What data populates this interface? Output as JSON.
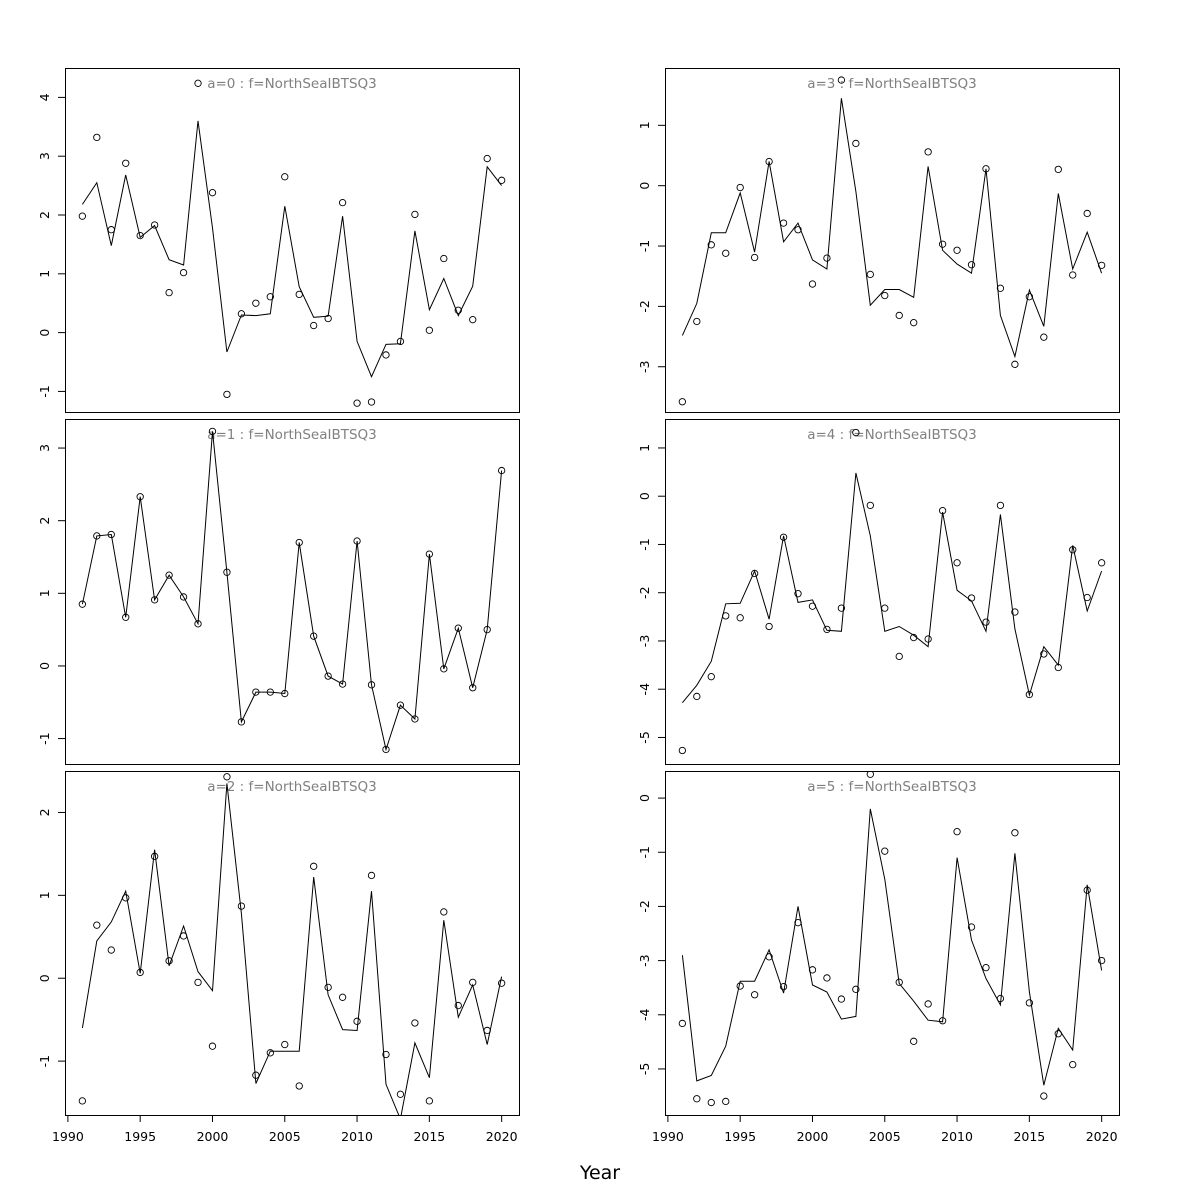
{
  "chart_data": {
    "type": "line",
    "xlabel": "Year",
    "x_ticks": [
      1990,
      1995,
      2000,
      2005,
      2010,
      2015,
      2020
    ],
    "xlim": [
      1989.8,
      2021.2
    ],
    "years": [
      1991,
      1992,
      1993,
      1994,
      1995,
      1996,
      1997,
      1998,
      1999,
      2000,
      2001,
      2002,
      2003,
      2004,
      2005,
      2006,
      2007,
      2008,
      2009,
      2010,
      2011,
      2012,
      2013,
      2014,
      2015,
      2016,
      2017,
      2018,
      2019,
      2020
    ],
    "legend": "none",
    "grid": false,
    "style": {
      "line_color": "#000000",
      "point_color": "#000000",
      "title_color": "#808080"
    },
    "panels": [
      {
        "title": "a=0  :  f=NorthSeaIBTSQ3",
        "y_ticks": [
          -1,
          0,
          1,
          2,
          3,
          4
        ],
        "ylim": [
          -1.35,
          4.5
        ],
        "observed": [
          1.98,
          3.32,
          1.75,
          2.88,
          1.65,
          1.83,
          0.68,
          1.02,
          4.24,
          2.38,
          -1.05,
          0.32,
          0.5,
          0.61,
          2.65,
          0.65,
          0.12,
          0.24,
          2.21,
          -1.2,
          -1.18,
          -0.38,
          -0.15,
          2.01,
          0.04,
          1.26,
          0.38,
          0.22,
          2.96,
          2.59
        ],
        "fitted": [
          2.18,
          2.55,
          1.48,
          2.68,
          1.62,
          1.82,
          1.24,
          1.15,
          3.6,
          1.78,
          -0.33,
          0.3,
          0.29,
          0.32,
          2.15,
          0.78,
          0.26,
          0.28,
          1.98,
          -0.15,
          -0.75,
          -0.2,
          -0.19,
          1.73,
          0.39,
          0.92,
          0.29,
          0.79,
          2.82,
          2.5
        ]
      },
      {
        "title": "a=1  :  f=NorthSeaIBTSQ3",
        "y_ticks": [
          -1,
          0,
          1,
          2,
          3
        ],
        "ylim": [
          -1.35,
          3.4
        ],
        "observed": [
          0.85,
          1.79,
          1.81,
          0.67,
          2.33,
          0.91,
          1.25,
          0.95,
          0.58,
          3.23,
          1.29,
          -0.77,
          -0.36,
          -0.36,
          -0.38,
          1.7,
          0.41,
          -0.14,
          -0.25,
          1.72,
          -0.26,
          -1.15,
          -0.54,
          -0.73,
          1.54,
          -0.04,
          0.52,
          -0.3,
          0.5,
          2.69
        ],
        "fitted": [
          0.85,
          1.79,
          1.81,
          0.67,
          2.33,
          0.91,
          1.25,
          0.95,
          0.58,
          3.23,
          1.29,
          -0.77,
          -0.36,
          -0.36,
          -0.38,
          1.7,
          0.41,
          -0.14,
          -0.25,
          1.72,
          -0.26,
          -1.15,
          -0.54,
          -0.73,
          1.54,
          -0.04,
          0.52,
          -0.3,
          0.5,
          2.69
        ]
      },
      {
        "title": "a=2  :  f=NorthSeaIBTSQ3",
        "y_ticks": [
          -1,
          0,
          1,
          2
        ],
        "ylim": [
          -1.65,
          2.5
        ],
        "observed": [
          -1.48,
          0.64,
          0.34,
          0.97,
          0.07,
          1.47,
          0.21,
          0.51,
          -0.05,
          -0.82,
          2.43,
          0.87,
          -1.17,
          -0.9,
          -0.8,
          -1.3,
          1.35,
          -0.11,
          -0.23,
          -0.52,
          1.24,
          -0.92,
          -1.4,
          -0.54,
          -1.48,
          0.8,
          -0.33,
          -0.05,
          -0.63,
          -0.06
        ],
        "fitted": [
          -0.6,
          0.45,
          0.68,
          1.05,
          0.06,
          1.55,
          0.15,
          0.63,
          0.08,
          -0.15,
          2.35,
          0.78,
          -1.27,
          -0.88,
          -0.88,
          -0.88,
          1.22,
          -0.2,
          -0.62,
          -0.63,
          1.05,
          -1.28,
          -1.7,
          -0.78,
          -1.2,
          0.7,
          -0.47,
          -0.08,
          -0.8,
          0.02
        ]
      },
      {
        "title": "a=3  :  f=NorthSeaIBTSQ3",
        "y_ticks": [
          -3,
          -2,
          -1,
          0,
          1
        ],
        "ylim": [
          -3.75,
          1.95
        ],
        "observed": [
          -3.58,
          -2.25,
          -0.98,
          -1.12,
          -0.03,
          -1.19,
          0.4,
          -0.62,
          -0.73,
          -1.63,
          -1.2,
          1.75,
          0.7,
          -1.47,
          -1.82,
          -2.15,
          -2.27,
          0.56,
          -0.97,
          -1.07,
          -1.31,
          0.28,
          -1.7,
          -2.96,
          -1.84,
          -2.51,
          0.27,
          -1.48,
          -0.46,
          -1.32
        ],
        "fitted": [
          -2.48,
          -1.95,
          -0.78,
          -0.78,
          -0.12,
          -1.1,
          0.4,
          -0.93,
          -0.62,
          -1.23,
          -1.38,
          1.45,
          -0.1,
          -1.98,
          -1.72,
          -1.72,
          -1.85,
          0.32,
          -1.07,
          -1.3,
          -1.45,
          0.28,
          -2.15,
          -2.83,
          -1.73,
          -2.33,
          -0.13,
          -1.38,
          -0.77,
          -1.45
        ]
      },
      {
        "title": "a=4  :  f=NorthSeaIBTSQ3",
        "y_ticks": [
          -5,
          -4,
          -3,
          -2,
          -1,
          0,
          1
        ],
        "ylim": [
          -5.55,
          1.6
        ],
        "observed": [
          -5.27,
          -4.15,
          -3.74,
          -2.48,
          -2.52,
          -1.6,
          -2.7,
          -0.85,
          -2.02,
          -2.28,
          -2.76,
          -2.32,
          1.32,
          -0.19,
          -2.32,
          -3.32,
          -2.93,
          -2.96,
          -0.3,
          -1.38,
          -2.11,
          -2.61,
          -0.19,
          -2.4,
          -4.11,
          -3.27,
          -3.55,
          -1.11,
          -2.1,
          -1.38
        ],
        "fitted": [
          -4.28,
          -3.92,
          -3.42,
          -2.23,
          -2.22,
          -1.55,
          -2.55,
          -0.82,
          -2.2,
          -2.15,
          -2.78,
          -2.8,
          0.48,
          -0.82,
          -2.8,
          -2.7,
          -2.88,
          -3.12,
          -0.33,
          -1.95,
          -2.17,
          -2.8,
          -0.38,
          -2.75,
          -4.12,
          -3.12,
          -3.5,
          -1.02,
          -2.38,
          -1.55
        ]
      },
      {
        "title": "a=5  :  f=NorthSeaIBTSQ3",
        "y_ticks": [
          -5,
          -4,
          -3,
          -2,
          -1,
          0
        ],
        "ylim": [
          -5.85,
          0.5
        ],
        "observed": [
          -4.16,
          -5.55,
          -5.62,
          -5.6,
          -3.47,
          -3.63,
          -2.93,
          -3.48,
          -2.3,
          -3.17,
          -3.32,
          -3.71,
          -3.53,
          0.44,
          -0.98,
          -3.4,
          -4.49,
          -3.8,
          -4.11,
          -0.62,
          -2.38,
          -3.13,
          -3.7,
          -0.64,
          -3.78,
          -5.5,
          -4.35,
          -4.92,
          -1.7,
          -3.0
        ],
        "fitted": [
          -2.9,
          -5.22,
          -5.12,
          -4.58,
          -3.38,
          -3.38,
          -2.8,
          -3.6,
          -2.0,
          -3.45,
          -3.58,
          -4.08,
          -4.03,
          -0.2,
          -1.5,
          -3.42,
          -3.75,
          -4.1,
          -4.13,
          -1.1,
          -2.62,
          -3.33,
          -3.82,
          -1.02,
          -3.58,
          -5.3,
          -4.25,
          -4.65,
          -1.6,
          -3.18
        ]
      }
    ]
  }
}
